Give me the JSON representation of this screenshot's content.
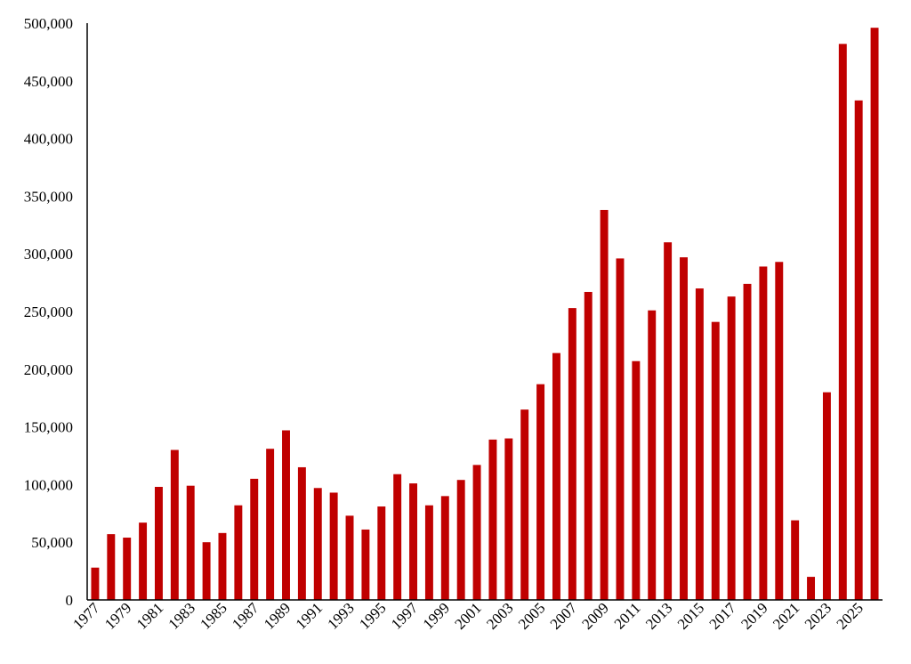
{
  "chart_data": {
    "type": "bar",
    "title": "",
    "xlabel": "",
    "ylabel": "",
    "ylim": [
      0,
      500000
    ],
    "yticks": [
      0,
      50000,
      100000,
      150000,
      200000,
      250000,
      300000,
      350000,
      400000,
      450000,
      500000
    ],
    "ytick_labels": [
      "0",
      "50,000",
      "100,000",
      "150,000",
      "200,000",
      "250,000",
      "300,000",
      "350,000",
      "400,000",
      "450,000",
      "500,000"
    ],
    "categories": [
      "1977",
      "1978",
      "1979",
      "1980",
      "1981",
      "1982",
      "1983",
      "1984",
      "1985",
      "1986",
      "1987",
      "1988",
      "1989",
      "1990",
      "1991",
      "1992",
      "1993",
      "1994",
      "1995",
      "1996",
      "1997",
      "1998",
      "1999",
      "2000",
      "2001",
      "2002",
      "2003",
      "2004",
      "2005",
      "2006",
      "2007",
      "2008",
      "2009",
      "2010",
      "2011",
      "2012",
      "2013",
      "2014",
      "2015",
      "2016",
      "2017",
      "2018",
      "2019",
      "2020",
      "2021",
      "2022",
      "2023",
      "2024",
      "2025",
      "2026"
    ],
    "xtick_labels": [
      "1977",
      "1979",
      "1981",
      "1983",
      "1985",
      "1987",
      "1989",
      "1991",
      "1993",
      "1995",
      "1997",
      "1999",
      "2001",
      "2003",
      "2005",
      "2007",
      "2009",
      "2011",
      "2013",
      "2015",
      "2017",
      "2019",
      "2021",
      "2023",
      "2025"
    ],
    "values": [
      28000,
      57000,
      54000,
      67000,
      98000,
      130000,
      99000,
      50000,
      58000,
      82000,
      105000,
      131000,
      147000,
      115000,
      97000,
      93000,
      73000,
      61000,
      81000,
      109000,
      101000,
      82000,
      90000,
      104000,
      117000,
      139000,
      140000,
      165000,
      187000,
      214000,
      253000,
      267000,
      338000,
      296000,
      207000,
      251000,
      310000,
      297000,
      270000,
      241000,
      263000,
      274000,
      289000,
      293000,
      69000,
      20000,
      180000,
      482000,
      433000,
      496000
    ],
    "bar_color": "#c00000",
    "grid": false,
    "legend": "none"
  }
}
